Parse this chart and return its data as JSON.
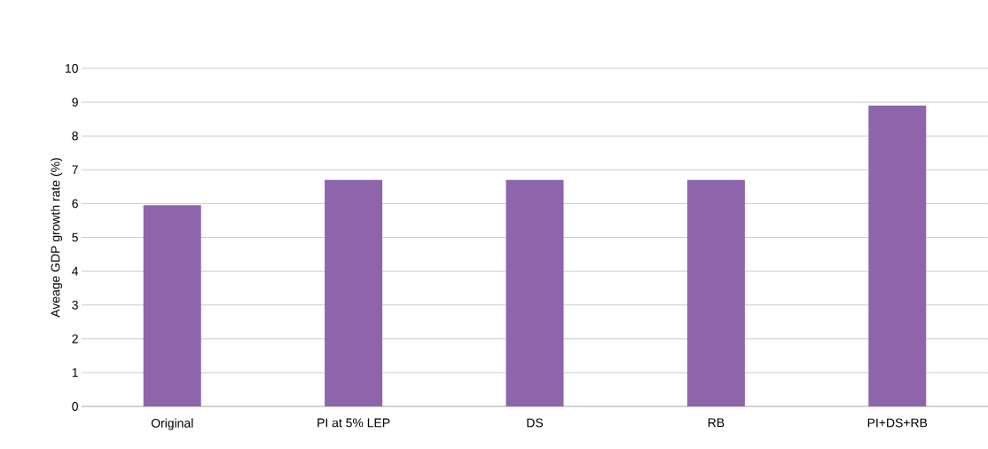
{
  "chart_data": {
    "type": "bar",
    "ylabel": "Aveage GDP growth rate (%)",
    "categories": [
      "Original",
      "PI at 5% LEP",
      "DS",
      "RB",
      "PI+DS+RB"
    ],
    "values": [
      5.95,
      6.7,
      6.7,
      6.7,
      8.9
    ],
    "color": "#8e65aa",
    "ylim": [
      0,
      10
    ],
    "yticks": [
      0,
      1,
      2,
      3,
      4,
      5,
      6,
      7,
      8,
      9,
      10
    ],
    "grid": "y"
  }
}
